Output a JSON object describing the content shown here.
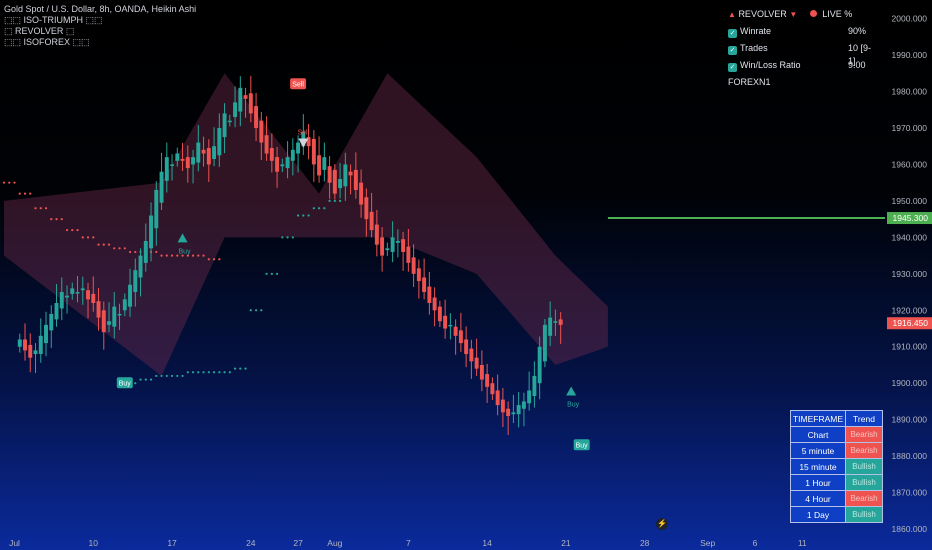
{
  "legend": {
    "line1": "Gold Spot / U.S. Dollar, 8h, OANDA, Heikin Ashi",
    "line2": "⬚⬚ ISO-TRIUMPH ⬚⬚",
    "line3": "⬚ REVOLVER ⬚",
    "line4": "⬚⬚ ISOFOREX ⬚⬚"
  },
  "stats": {
    "header_revolver": "REVOLVER",
    "header_live": "LIVE %",
    "rows": [
      {
        "label": "Winrate",
        "value": "90%"
      },
      {
        "label": "Trades",
        "value": "10 [9-1]"
      },
      {
        "label": "Win/Loss Ratio",
        "value": "9.00"
      }
    ],
    "footer": "FOREXN1"
  },
  "trend_table": {
    "headers": [
      "TIMEFRAME",
      "Trend"
    ],
    "rows": [
      {
        "tf": "Chart",
        "trend": "Bearish",
        "state": "bear"
      },
      {
        "tf": "5 minute",
        "trend": "Bearish",
        "state": "bear"
      },
      {
        "tf": "15 minute",
        "trend": "Bullish",
        "state": "bull"
      },
      {
        "tf": "1 Hour",
        "trend": "Bullish",
        "state": "bull"
      },
      {
        "tf": "4 Hour",
        "trend": "Bearish",
        "state": "bear"
      },
      {
        "tf": "1 Day",
        "trend": "Bullish",
        "state": "bull"
      }
    ]
  },
  "chart_data": {
    "type": "candlestick",
    "y_axis": {
      "ticks": [
        1860,
        1870,
        1880,
        1890,
        1900,
        1910,
        1920,
        1930,
        1940,
        1950,
        1960,
        1970,
        1980,
        1990,
        2000
      ],
      "tick_labels": [
        "1860.000",
        "1870.000",
        "1880.000",
        "1890.000",
        "1900.000",
        "1910.000",
        "1920.000",
        "1930.000",
        "1940.000",
        "1950.000",
        "1960.000",
        "1970.000",
        "1980.000",
        "1990.000",
        "2000.000"
      ],
      "range": [
        1857,
        2004
      ]
    },
    "x_axis": {
      "labels": [
        {
          "text": "Jul",
          "index": 2
        },
        {
          "text": "10",
          "index": 17
        },
        {
          "text": "17",
          "index": 32
        },
        {
          "text": "24",
          "index": 47
        },
        {
          "text": "27",
          "index": 56
        },
        {
          "text": "Aug",
          "index": 63
        },
        {
          "text": "7",
          "index": 77
        },
        {
          "text": "14",
          "index": 92
        },
        {
          "text": "21",
          "index": 107
        },
        {
          "text": "28",
          "index": 122
        },
        {
          "text": "Sep",
          "index": 134
        },
        {
          "text": "6",
          "index": 143
        },
        {
          "text": "11",
          "index": 152
        }
      ],
      "last_index": 167
    },
    "price_labels": [
      {
        "value": 1945.3,
        "text": "1945.300",
        "color": "#4caf50"
      },
      {
        "value": 1916.45,
        "text": "1916.450",
        "color": "#ef5350"
      }
    ],
    "target_line": {
      "value": 1945.3,
      "from_index": 115,
      "color": "#4caf50"
    },
    "closes": [
      1912,
      1909,
      1907,
      1909,
      1913,
      1916,
      1919,
      1922,
      1925,
      1924,
      1926,
      1925,
      1926,
      1923,
      1922,
      1918,
      1914,
      1917,
      1921,
      1919,
      1923,
      1927,
      1931,
      1935,
      1939,
      1946,
      1953,
      1958,
      1962,
      1960,
      1963,
      1961,
      1959,
      1962,
      1966,
      1963,
      1960,
      1965,
      1970,
      1974,
      1972,
      1977,
      1981,
      1978,
      1974,
      1970,
      1966,
      1963,
      1961,
      1958,
      1960,
      1962,
      1964,
      1966,
      1969,
      1965,
      1960,
      1957,
      1962,
      1955,
      1952,
      1956,
      1960,
      1957,
      1953,
      1949,
      1945,
      1942,
      1938,
      1935,
      1937,
      1940,
      1939,
      1936,
      1933,
      1930,
      1928,
      1925,
      1922,
      1920,
      1917,
      1915,
      1916,
      1913,
      1911,
      1908,
      1906,
      1904,
      1901,
      1899,
      1897,
      1894,
      1892,
      1891,
      1892,
      1894,
      1895,
      1898,
      1902,
      1910,
      1916,
      1918,
      1917,
      1916
    ],
    "high_low_spread": 4,
    "cloud": [
      {
        "index": 0,
        "top": 1950,
        "bottom": 1935
      },
      {
        "index": 30,
        "top": 1955,
        "bottom": 1902
      },
      {
        "index": 42,
        "top": 1985,
        "bottom": 1940
      },
      {
        "index": 60,
        "top": 1952,
        "bottom": 1940
      },
      {
        "index": 73,
        "top": 1985,
        "bottom": 1940
      },
      {
        "index": 90,
        "top": 1962,
        "bottom": 1930
      },
      {
        "index": 105,
        "top": 1935,
        "bottom": 1905
      },
      {
        "index": 115,
        "top": 1921,
        "bottom": 1910
      }
    ],
    "trail_upper": [
      1955,
      1952,
      1948,
      1945,
      1942,
      1940,
      1938,
      1937,
      1936,
      1936,
      1935,
      1935,
      1935,
      1934
    ],
    "trail_lower": [
      1900,
      1901,
      1902,
      1902,
      1903,
      1903,
      1903,
      1904,
      1920,
      1930,
      1940,
      1946,
      1948,
      1950
    ],
    "signals": [
      {
        "type": "Buy",
        "index": 23,
        "value": 1900,
        "style": "box"
      },
      {
        "type": "Buy",
        "index": 34,
        "value": 1940,
        "style": "arrow"
      },
      {
        "type": "Sell",
        "index": 56,
        "value": 1982,
        "style": "box"
      },
      {
        "type": "Sell",
        "index": 57,
        "value": 1966,
        "style": "arrow"
      },
      {
        "type": "Buy",
        "index": 108,
        "value": 1898,
        "style": "arrow"
      },
      {
        "type": "Buy",
        "index": 110,
        "value": 1883,
        "style": "box"
      }
    ]
  }
}
